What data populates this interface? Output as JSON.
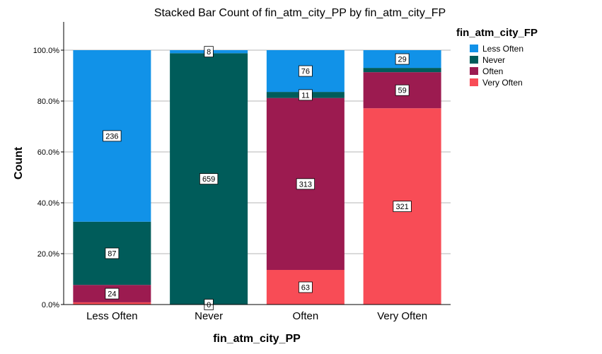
{
  "chart_data": {
    "type": "bar",
    "stacked": true,
    "normalized": true,
    "title": "Stacked Bar Count of fin_atm_city_PP by fin_atm_city_FP",
    "xlabel": "fin_atm_city_PP",
    "ylabel": "Count",
    "categories": [
      "Less Often",
      "Never",
      "Often",
      "Very Often"
    ],
    "ylim": [
      0,
      1.1
    ],
    "yticks": [
      {
        "value": 0.0,
        "label": "0.0%"
      },
      {
        "value": 0.2,
        "label": "20.0%"
      },
      {
        "value": 0.4,
        "label": "40.0%"
      },
      {
        "value": 0.6,
        "label": "60.0%"
      },
      {
        "value": 0.8,
        "label": "80.0%"
      },
      {
        "value": 1.0,
        "label": "100.0%"
      }
    ],
    "grid": true,
    "legend": {
      "title": "fin_atm_city_FP",
      "position": "top-right"
    },
    "series": [
      {
        "name": "Very Often",
        "color": "#f84c56",
        "values": [
          3,
          0,
          63,
          321
        ]
      },
      {
        "name": "Often",
        "color": "#9c1b50",
        "values": [
          24,
          0,
          313,
          59
        ]
      },
      {
        "name": "Never",
        "color": "#005c5a",
        "values": [
          87,
          659,
          11,
          7
        ]
      },
      {
        "name": "Less Often",
        "color": "#1192e8",
        "values": [
          236,
          8,
          76,
          29
        ]
      }
    ],
    "data_labels": [
      [
        null,
        "0",
        "63",
        "321"
      ],
      [
        "24",
        null,
        "313",
        "59"
      ],
      [
        "87",
        "659",
        "11",
        null
      ],
      [
        "236",
        "8",
        "76",
        "29"
      ]
    ],
    "legend_order": [
      "Less Often",
      "Never",
      "Often",
      "Very Often"
    ]
  }
}
